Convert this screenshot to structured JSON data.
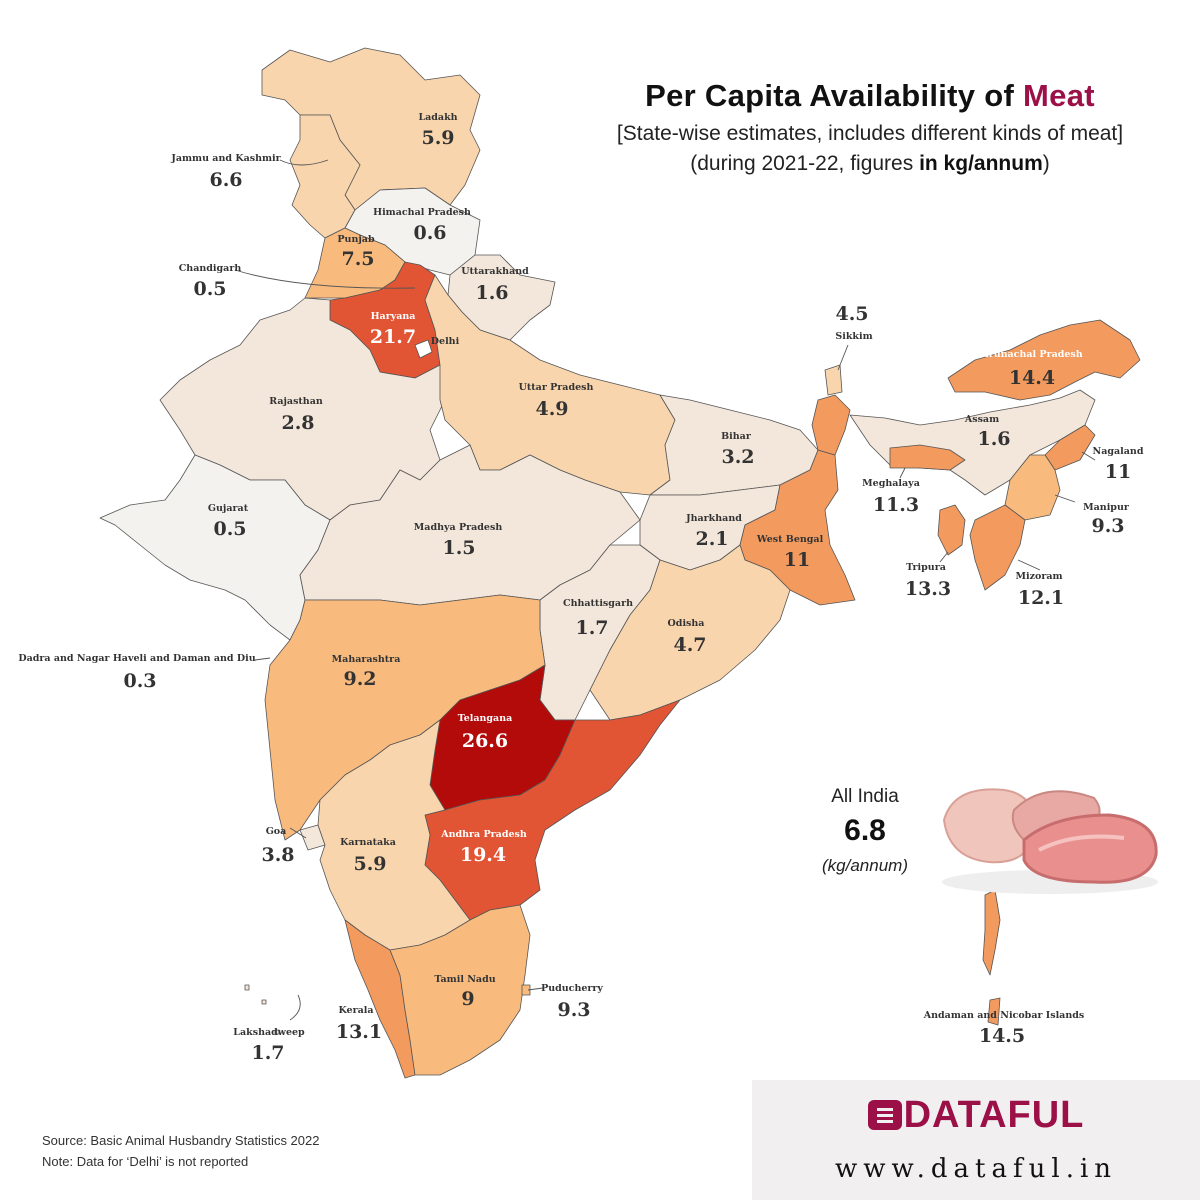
{
  "title": {
    "prefix": "Per Capita Availability of ",
    "accent": "Meat",
    "subtitle": "[State-wise estimates, includes different kinds of meat]",
    "period_prefix": "(during 2021-22, figures ",
    "period_bold": "in kg/annum",
    "period_suffix": ")"
  },
  "colors": {
    "accent": "#9b1046",
    "scale": [
      "#f4f2ef",
      "#f3e6da",
      "#f9d5ad",
      "#f8bb7d",
      "#f39a5e",
      "#e15535",
      "#b30a0a"
    ]
  },
  "states": [
    {
      "key": "ladakh",
      "name": "Ladakh",
      "value": "5.9"
    },
    {
      "key": "jk",
      "name": "Jammu and Kashmir",
      "value": "6.6"
    },
    {
      "key": "hp",
      "name": "Himachal Pradesh",
      "value": "0.6"
    },
    {
      "key": "punjab",
      "name": "Punjab",
      "value": "7.5"
    },
    {
      "key": "chandigarh",
      "name": "Chandigarh",
      "value": "0.5"
    },
    {
      "key": "uttarakhand",
      "name": "Uttarakhand",
      "value": "1.6"
    },
    {
      "key": "haryana",
      "name": "Haryana",
      "value": "21.7"
    },
    {
      "key": "delhi",
      "name": "Delhi",
      "value": ""
    },
    {
      "key": "rajasthan",
      "name": "Rajasthan",
      "value": "2.8"
    },
    {
      "key": "up",
      "name": "Uttar Pradesh",
      "value": "4.9"
    },
    {
      "key": "bihar",
      "name": "Bihar",
      "value": "3.2"
    },
    {
      "key": "sikkim",
      "name": "Sikkim",
      "value": "4.5"
    },
    {
      "key": "arunachal",
      "name": "Arunachal Pradesh",
      "value": "14.4"
    },
    {
      "key": "assam",
      "name": "Assam",
      "value": "1.6"
    },
    {
      "key": "nagaland",
      "name": "Nagaland",
      "value": "11"
    },
    {
      "key": "meghalaya",
      "name": "Meghalaya",
      "value": "11.3"
    },
    {
      "key": "manipur",
      "name": "Manipur",
      "value": "9.3"
    },
    {
      "key": "tripura",
      "name": "Tripura",
      "value": "13.3"
    },
    {
      "key": "mizoram",
      "name": "Mizoram",
      "value": "12.1"
    },
    {
      "key": "gujarat",
      "name": "Gujarat",
      "value": "0.5"
    },
    {
      "key": "mp",
      "name": "Madhya Pradesh",
      "value": "1.5"
    },
    {
      "key": "jharkhand",
      "name": "Jharkhand",
      "value": "2.1"
    },
    {
      "key": "wb",
      "name": "West Bengal",
      "value": "11"
    },
    {
      "key": "chhattisgarh",
      "name": "Chhattisgarh",
      "value": "1.7"
    },
    {
      "key": "odisha",
      "name": "Odisha",
      "value": "4.7"
    },
    {
      "key": "dnh",
      "name": "Dadra and Nagar Haveli and Daman and Diu",
      "value": "0.3"
    },
    {
      "key": "maharashtra",
      "name": "Maharashtra",
      "value": "9.2"
    },
    {
      "key": "telangana",
      "name": "Telangana",
      "value": "26.6"
    },
    {
      "key": "goa",
      "name": "Goa",
      "value": "3.8"
    },
    {
      "key": "karnataka",
      "name": "Karnataka",
      "value": "5.9"
    },
    {
      "key": "ap",
      "name": "Andhra Pradesh",
      "value": "19.4"
    },
    {
      "key": "tn",
      "name": "Tamil Nadu",
      "value": "9"
    },
    {
      "key": "puducherry",
      "name": "Puducherry",
      "value": "9.3"
    },
    {
      "key": "kerala",
      "name": "Kerala",
      "value": "13.1"
    },
    {
      "key": "lakshadweep",
      "name": "Lakshadweep",
      "value": "1.7"
    },
    {
      "key": "andaman",
      "name": "Andaman and Nicobar Islands",
      "value": "14.5"
    }
  ],
  "all_india": {
    "label": "All India",
    "value": "6.8",
    "unit": "(kg/annum)"
  },
  "footer": {
    "source_label": "Source:",
    "source_text": " Basic Animal Husbandry Statistics 2022",
    "note_label": "Note:",
    "note_text": " Data for ‘Delhi’ is not reported"
  },
  "brand": {
    "name": "DATAFUL",
    "url": "www.dataful.in"
  }
}
